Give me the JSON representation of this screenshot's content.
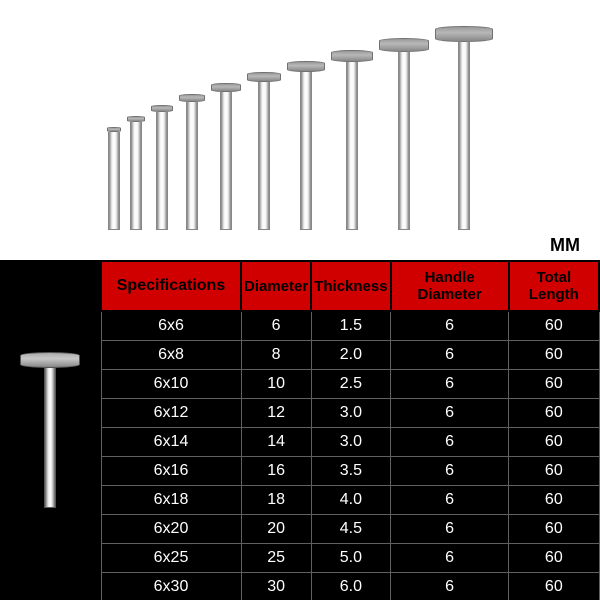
{
  "unit_label": "MM",
  "drill_bits_display": [
    {
      "head_width": 14,
      "head_height": 5,
      "shaft_height": 98
    },
    {
      "head_width": 18,
      "head_height": 6,
      "shaft_height": 108
    },
    {
      "head_width": 22,
      "head_height": 7,
      "shaft_height": 118
    },
    {
      "head_width": 26,
      "head_height": 8,
      "shaft_height": 128
    },
    {
      "head_width": 30,
      "head_height": 9,
      "shaft_height": 138
    },
    {
      "head_width": 34,
      "head_height": 10,
      "shaft_height": 148
    },
    {
      "head_width": 38,
      "head_height": 11,
      "shaft_height": 158
    },
    {
      "head_width": 42,
      "head_height": 12,
      "shaft_height": 168
    },
    {
      "head_width": 50,
      "head_height": 14,
      "shaft_height": 178
    },
    {
      "head_width": 58,
      "head_height": 16,
      "shaft_height": 188
    }
  ],
  "table": {
    "columns": [
      "Specifications",
      "Diameter",
      "Thickness",
      "Handle Diameter",
      "Total Length"
    ],
    "rows": [
      [
        "6x6",
        "6",
        "1.5",
        "6",
        "60"
      ],
      [
        "6x8",
        "8",
        "2.0",
        "6",
        "60"
      ],
      [
        "6x10",
        "10",
        "2.5",
        "6",
        "60"
      ],
      [
        "6x12",
        "12",
        "3.0",
        "6",
        "60"
      ],
      [
        "6x14",
        "14",
        "3.0",
        "6",
        "60"
      ],
      [
        "6x16",
        "16",
        "3.5",
        "6",
        "60"
      ],
      [
        "6x18",
        "18",
        "4.0",
        "6",
        "60"
      ],
      [
        "6x20",
        "20",
        "4.5",
        "6",
        "60"
      ],
      [
        "6x25",
        "25",
        "5.0",
        "6",
        "60"
      ],
      [
        "6x30",
        "30",
        "6.0",
        "6",
        "60"
      ]
    ]
  },
  "colors": {
    "header_bg": "#d00000",
    "table_bg": "#000000",
    "cell_text": "#ffffff",
    "border": "#606060"
  }
}
